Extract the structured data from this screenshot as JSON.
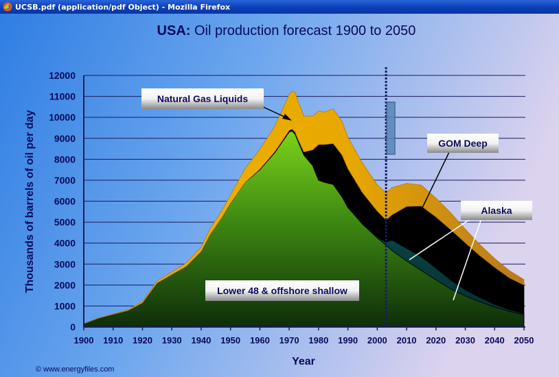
{
  "window": {
    "title": "UCSB.pdf (application/pdf Object) - Mozilla Firefox",
    "icon": "firefox-icon"
  },
  "colors": {
    "lower48": "#2f6a10",
    "natural_gas_liquids": "#e8a800",
    "gom_deep": "#0c3c3e",
    "alaska": "#000000",
    "forecast_line": "#1a1a6e",
    "text": "#0a0a5a"
  },
  "copyright": "© www.energyfiles.com",
  "chart_data": {
    "type": "area",
    "title_bold": "USA:",
    "title_rest": " Oil production forecast 1900 to 2050",
    "xlabel": "Year",
    "ylabel": "Thousands of barrels of oil per day",
    "xlim": [
      1900,
      2050
    ],
    "ylim": [
      0,
      12000
    ],
    "x_ticks": [
      "1900",
      "1910",
      "1920",
      "1930",
      "1940",
      "1950",
      "1960",
      "1970",
      "1980",
      "1990",
      "2000",
      "2010",
      "2020",
      "2030",
      "2040",
      "2050"
    ],
    "y_ticks": [
      "0",
      "1000",
      "2000",
      "3000",
      "4000",
      "5000",
      "6000",
      "7000",
      "8000",
      "9000",
      "10000",
      "11000",
      "12000"
    ],
    "grid": true,
    "forecast_year": 2003,
    "series": [
      {
        "name": "Lower 48 & offshore shallow",
        "x": [
          1900,
          1905,
          1910,
          1915,
          1920,
          1925,
          1930,
          1935,
          1940,
          1943,
          1945,
          1947,
          1950,
          1955,
          1960,
          1965,
          1968,
          1970,
          1971,
          1972,
          1973,
          1975,
          1978,
          1980,
          1982,
          1985,
          1988,
          1990,
          1995,
          2000,
          2003,
          2005,
          2010,
          2015,
          2020,
          2025,
          2030,
          2035,
          2040,
          2045,
          2050
        ],
        "values": [
          150,
          420,
          600,
          780,
          1150,
          2100,
          2500,
          2900,
          3600,
          4400,
          4800,
          5200,
          5900,
          6900,
          7500,
          8300,
          8900,
          9300,
          9350,
          9200,
          8850,
          8200,
          7700,
          7000,
          6900,
          6800,
          6200,
          5700,
          4900,
          4250,
          3900,
          3650,
          3150,
          2700,
          2250,
          1820,
          1480,
          1200,
          950,
          750,
          580
        ]
      },
      {
        "name": "GOM Deep",
        "x": [
          1900,
          1905,
          1910,
          1915,
          1920,
          1925,
          1930,
          1935,
          1940,
          1943,
          1945,
          1947,
          1950,
          1955,
          1960,
          1965,
          1968,
          1970,
          1971,
          1972,
          1973,
          1975,
          1978,
          1980,
          1982,
          1985,
          1988,
          1990,
          1995,
          2000,
          2003,
          2005,
          2010,
          2015,
          2020,
          2025,
          2030,
          2035,
          2040,
          2045,
          2050
        ],
        "values": [
          0,
          0,
          0,
          0,
          0,
          0,
          0,
          0,
          0,
          0,
          0,
          0,
          0,
          0,
          0,
          0,
          0,
          0,
          0,
          0,
          0,
          0,
          0,
          0,
          0,
          0,
          0,
          0,
          0,
          30,
          150,
          500,
          600,
          650,
          560,
          420,
          300,
          200,
          130,
          80,
          50
        ]
      },
      {
        "name": "Alaska",
        "x": [
          1900,
          1905,
          1910,
          1915,
          1920,
          1925,
          1930,
          1935,
          1940,
          1943,
          1945,
          1947,
          1950,
          1955,
          1960,
          1965,
          1968,
          1970,
          1971,
          1972,
          1973,
          1975,
          1978,
          1980,
          1982,
          1985,
          1988,
          1990,
          1995,
          2000,
          2003,
          2005,
          2010,
          2015,
          2020,
          2025,
          2030,
          2035,
          2040,
          2045,
          2050
        ],
        "values": [
          0,
          0,
          0,
          0,
          0,
          0,
          0,
          0,
          0,
          0,
          0,
          0,
          0,
          0,
          30,
          50,
          60,
          80,
          90,
          100,
          100,
          150,
          750,
          1700,
          1800,
          1950,
          2000,
          1850,
          1500,
          1250,
          1050,
          1200,
          2000,
          2420,
          2440,
          2410,
          2240,
          2000,
          1770,
          1520,
          1370
        ]
      },
      {
        "name": "Natural Gas Liquids",
        "x": [
          1900,
          1905,
          1910,
          1915,
          1920,
          1925,
          1930,
          1935,
          1940,
          1943,
          1945,
          1947,
          1950,
          1955,
          1960,
          1965,
          1968,
          1970,
          1971,
          1972,
          1973,
          1975,
          1978,
          1980,
          1982,
          1985,
          1988,
          1990,
          1995,
          2000,
          2003,
          2005,
          2010,
          2015,
          2020,
          2025,
          2030,
          2035,
          2040,
          2045,
          2050
        ],
        "values": [
          0,
          10,
          20,
          40,
          60,
          90,
          120,
          160,
          200,
          280,
          300,
          330,
          400,
          650,
          950,
          1200,
          1500,
          1700,
          1800,
          1900,
          1800,
          1700,
          1600,
          1600,
          1550,
          1650,
          1600,
          1500,
          1400,
          1250,
          1300,
          1300,
          1100,
          1000,
          900,
          800,
          650,
          520,
          420,
          340,
          260
        ]
      }
    ],
    "labels": [
      "Natural Gas Liquids",
      "GOM Deep",
      "Alaska",
      "Lower 48 & offshore shallow"
    ]
  }
}
